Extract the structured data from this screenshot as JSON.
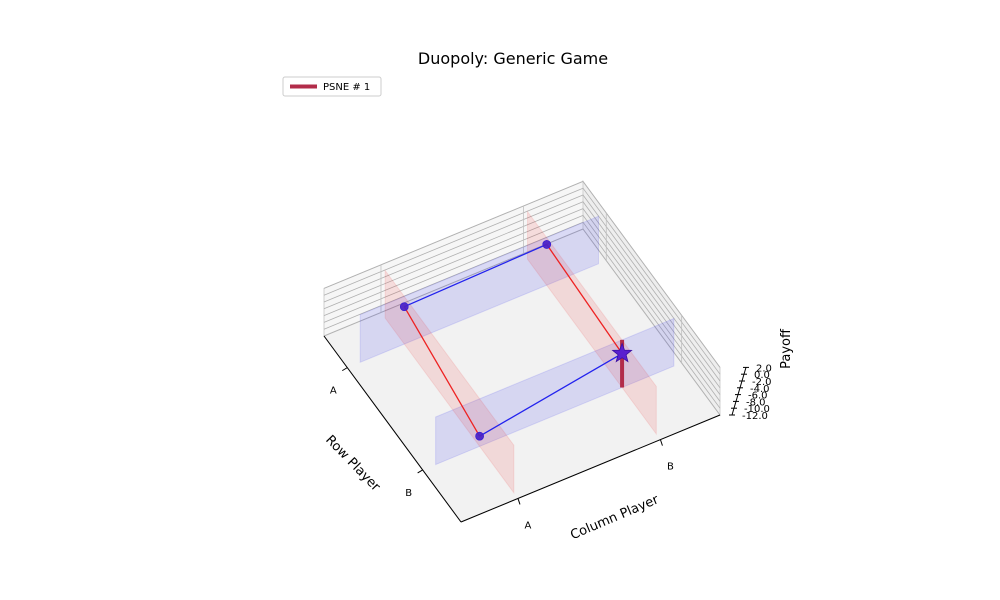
{
  "chart_data": {
    "type": "scatter",
    "projection": "3d",
    "title": "Duopoly: Generic Game",
    "xlabel": "Row Player",
    "ylabel": "Column Player",
    "zlabel": "Payoff",
    "x_categories": [
      "A",
      "B"
    ],
    "y_categories": [
      "A",
      "B"
    ],
    "zlim": [
      -12,
      2
    ],
    "z_ticks": [
      "2.0",
      "0.0",
      "-2.0",
      "-4.0",
      "-6.0",
      "-8.0",
      "-10.0",
      "-12.0"
    ],
    "grid": true,
    "legend": {
      "position": "top-left",
      "entries": [
        "PSNE # 1"
      ]
    },
    "series": [
      {
        "color": "#ee2222",
        "points": [
          {
            "row": "A",
            "col": "A",
            "payoff": -1
          },
          {
            "row": "B",
            "col": "A",
            "payoff": -9
          },
          {
            "row": "A",
            "col": "B",
            "payoff": 0
          },
          {
            "row": "B",
            "col": "B",
            "payoff": -2
          }
        ]
      },
      {
        "color": "#2222ee",
        "points": [
          {
            "row": "A",
            "col": "A",
            "payoff": -1
          },
          {
            "row": "A",
            "col": "B",
            "payoff": 0
          },
          {
            "row": "B",
            "col": "A",
            "payoff": -9
          },
          {
            "row": "B",
            "col": "B",
            "payoff": -2
          }
        ]
      }
    ],
    "equilibria": [
      {
        "label": "PSNE # 1",
        "row": "B",
        "col": "B",
        "color": "#b22c4a"
      }
    ]
  }
}
